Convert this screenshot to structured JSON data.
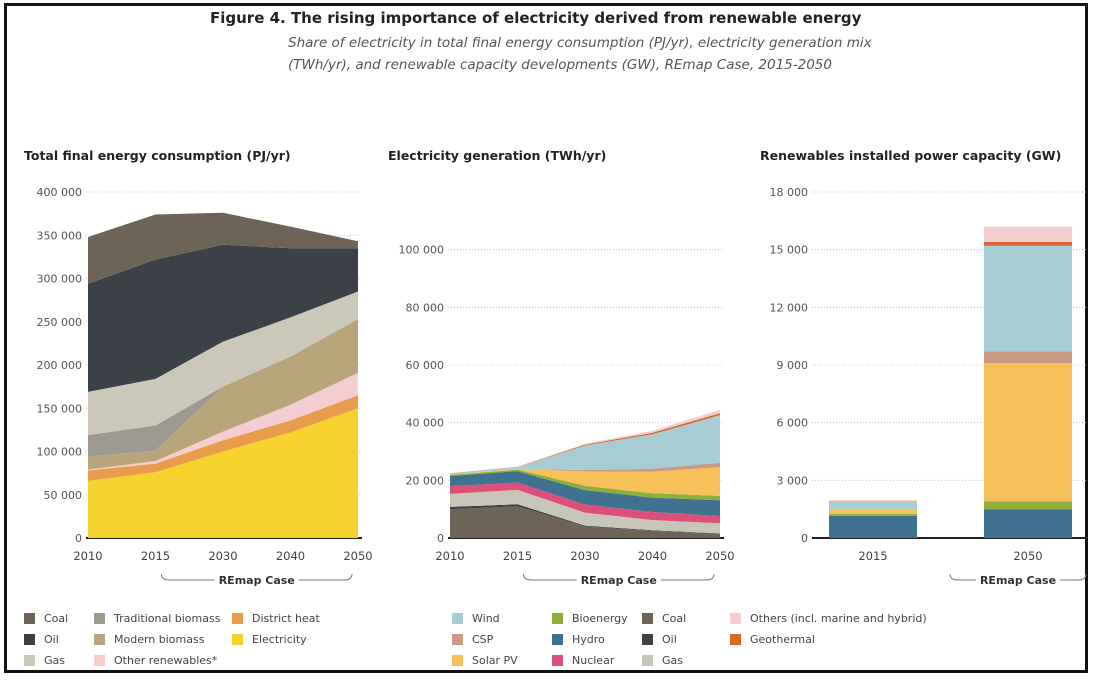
{
  "figure": {
    "title": "Figure 4. The rising importance of electricity derived from renewable energy",
    "subtitle_line1": "Share of electricity in total final energy consumption (PJ/yr), electricity generation mix",
    "subtitle_line2": "(TWh/yr), and renewable capacity developments (GW), REmap Case, 2015-2050"
  },
  "colors": {
    "coal": "#6e6357",
    "traditional_biomass": "#9d9890",
    "district_heat": "#e79d4c",
    "oil": "#3c4147",
    "modern_biomass": "#b9a57a",
    "electricity": "#f6d22f",
    "gas": "#cbc8b9",
    "other_renewables": "#f3cdd0",
    "wind": "#a8ccd4",
    "csp": "#c99a85",
    "solar_pv": "#f7c15a",
    "bioenergy": "#8fae3c",
    "hydro": "#3f7290",
    "nuclear": "#db4f79",
    "others_marine_hybrid": "#f4cdd0",
    "geothermal": "#d9662f",
    "gen_coal": "#6e6357",
    "gen_oil": "#3c4147",
    "gen_gas": "#c8c6b8"
  },
  "chart_data": [
    {
      "type": "area",
      "title": "Total final energy consumption (PJ/yr)",
      "x": [
        "2010",
        "2015",
        "2030",
        "2040",
        "2050"
      ],
      "ylim": [
        0,
        400000
      ],
      "yticks": [
        "0",
        "50 000",
        "100 000",
        "150 000",
        "200 000",
        "250 000",
        "300 000",
        "350 000",
        "400 000"
      ],
      "bracket_label": "REmap Case",
      "stacked": true,
      "series": [
        {
          "name": "Electricity",
          "key": "electricity",
          "values": [
            66000,
            76000,
            100000,
            122000,
            150000
          ]
        },
        {
          "name": "District heat",
          "key": "district_heat",
          "values": [
            12000,
            10000,
            13000,
            14000,
            15000
          ]
        },
        {
          "name": "Other renewables*",
          "key": "other_renewables",
          "values": [
            1000,
            3000,
            10000,
            18000,
            26000
          ]
        },
        {
          "name": "Modern biomass",
          "key": "modern_biomass",
          "values": [
            15000,
            12000,
            52000,
            56000,
            62000
          ]
        },
        {
          "name": "Traditional biomass",
          "key": "traditional_biomass",
          "values": [
            25000,
            29000,
            0,
            0,
            0
          ]
        },
        {
          "name": "Gas",
          "key": "gas",
          "values": [
            50000,
            54000,
            52000,
            45000,
            32000
          ]
        },
        {
          "name": "Oil",
          "key": "oil",
          "values": [
            125000,
            138000,
            112000,
            80000,
            50000
          ]
        },
        {
          "name": "Coal",
          "key": "coal",
          "values": [
            54000,
            52000,
            37000,
            25000,
            8000
          ]
        }
      ]
    },
    {
      "type": "area",
      "title": "Electricity generation (TWh/yr)",
      "x": [
        "2010",
        "2015",
        "2030",
        "2040",
        "2050"
      ],
      "ylim": [
        0,
        120000
      ],
      "yticks": [
        "0",
        "20 000",
        "40 000",
        "60 000",
        "80 000",
        "100 000"
      ],
      "bracket_label": "REmap Case",
      "stacked": true,
      "series": [
        {
          "name": "Coal",
          "key": "gen_coal",
          "values": [
            10000,
            11000,
            4000,
            2500,
            1500
          ]
        },
        {
          "name": "Oil",
          "key": "gen_oil",
          "values": [
            800,
            700,
            300,
            200,
            100
          ]
        },
        {
          "name": "Gas",
          "key": "gen_gas",
          "values": [
            4500,
            5000,
            4500,
            3500,
            3500
          ]
        },
        {
          "name": "Nuclear",
          "key": "nuclear",
          "values": [
            2700,
            2500,
            2800,
            2800,
            2500
          ]
        },
        {
          "name": "Hydro",
          "key": "hydro",
          "values": [
            3500,
            4000,
            5000,
            5000,
            5500
          ]
        },
        {
          "name": "Bioenergy",
          "key": "bioenergy",
          "values": [
            400,
            500,
            1500,
            1500,
            1500
          ]
        },
        {
          "name": "Solar PV",
          "key": "solar_pv",
          "values": [
            100,
            300,
            5000,
            7500,
            10000
          ]
        },
        {
          "name": "CSP",
          "key": "csp",
          "values": [
            0,
            0,
            500,
            1000,
            1500
          ]
        },
        {
          "name": "Wind",
          "key": "wind",
          "values": [
            400,
            600,
            8500,
            12000,
            16500
          ]
        },
        {
          "name": "Geothermal",
          "key": "geothermal",
          "values": [
            50,
            80,
            300,
            500,
            700
          ]
        },
        {
          "name": "Others (incl. marine and hybrid)",
          "key": "others_marine_hybrid",
          "values": [
            50,
            50,
            300,
            700,
            1200
          ]
        }
      ]
    },
    {
      "type": "bar",
      "title": "Renewables installed power capacity (GW)",
      "categories": [
        "2015",
        "2050"
      ],
      "ylim": [
        0,
        18000
      ],
      "yticks": [
        "0",
        "3 000",
        "6 000",
        "9 000",
        "12 000",
        "15 000",
        "18 000"
      ],
      "bracket_label": "REmap Case",
      "stacked": true,
      "series": [
        {
          "name": "Hydro",
          "key": "hydro",
          "values": [
            1150,
            1500
          ]
        },
        {
          "name": "Bioenergy",
          "key": "bioenergy",
          "values": [
            110,
            400
          ]
        },
        {
          "name": "Solar PV",
          "key": "solar_pv",
          "values": [
            230,
            7200
          ]
        },
        {
          "name": "CSP",
          "key": "csp",
          "values": [
            5,
            600
          ]
        },
        {
          "name": "Wind",
          "key": "wind",
          "values": [
            430,
            5500
          ]
        },
        {
          "name": "Geothermal",
          "key": "geothermal",
          "values": [
            15,
            200
          ]
        },
        {
          "name": "Others (incl. marine and hybrid)",
          "key": "others_marine_hybrid",
          "values": [
            10,
            800
          ]
        }
      ]
    }
  ],
  "legend_left": [
    {
      "label": "Coal",
      "key": "coal"
    },
    {
      "label": "Traditional biomass",
      "key": "traditional_biomass"
    },
    {
      "label": "District heat",
      "key": "district_heat"
    },
    {
      "label": "Oil",
      "key": "oil"
    },
    {
      "label": "Modern biomass",
      "key": "modern_biomass"
    },
    {
      "label": "Electricity",
      "key": "electricity"
    },
    {
      "label": "Gas",
      "key": "gas"
    },
    {
      "label": "Other renewables*",
      "key": "other_renewables"
    }
  ],
  "legend_right": [
    {
      "label": "Wind",
      "key": "wind"
    },
    {
      "label": "Bioenergy",
      "key": "bioenergy"
    },
    {
      "label": "Coal",
      "key": "gen_coal"
    },
    {
      "label": "Others (incl. marine and hybrid)",
      "key": "others_marine_hybrid"
    },
    {
      "label": "CSP",
      "key": "csp"
    },
    {
      "label": "Hydro",
      "key": "hydro"
    },
    {
      "label": "Oil",
      "key": "gen_oil"
    },
    {
      "label": "Geothermal",
      "key": "geothermal"
    },
    {
      "label": "Solar PV",
      "key": "solar_pv"
    },
    {
      "label": "Nuclear",
      "key": "nuclear"
    },
    {
      "label": "Gas",
      "key": "gen_gas"
    }
  ]
}
